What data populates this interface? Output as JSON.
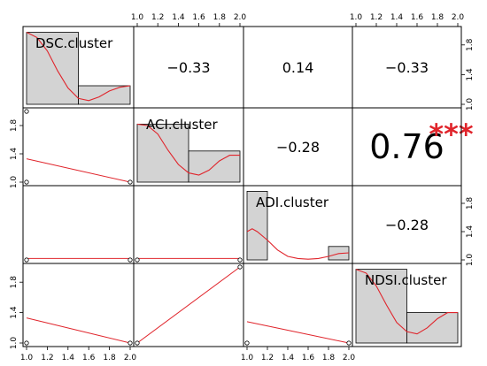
{
  "chart_data": {
    "type": "pairs-correlation-matrix",
    "variables": [
      "DSC.cluster",
      "ACI.cluster",
      "ADI.cluster",
      "NDSI.cluster"
    ],
    "axis_range": [
      1.0,
      2.0
    ],
    "top_ticks": [
      "1.0",
      "1.2",
      "1.4",
      "1.6",
      "1.8",
      "2.0"
    ],
    "bottom_ticks": [
      "1.0",
      "1.2",
      "1.4",
      "1.6",
      "1.8",
      "2.0"
    ],
    "side_ticks": [
      "1.0",
      "1.4",
      "1.8"
    ],
    "correlations": [
      {
        "row": 0,
        "col": 1,
        "text": "−0.33",
        "value": -0.33,
        "stars": ""
      },
      {
        "row": 0,
        "col": 2,
        "text": "0.14",
        "value": 0.14,
        "stars": ""
      },
      {
        "row": 0,
        "col": 3,
        "text": "−0.33",
        "value": -0.33,
        "stars": ""
      },
      {
        "row": 1,
        "col": 2,
        "text": "−0.28",
        "value": -0.28,
        "stars": ""
      },
      {
        "row": 1,
        "col": 3,
        "text": "0.76",
        "value": 0.76,
        "stars": "***"
      },
      {
        "row": 2,
        "col": 3,
        "text": "−0.28",
        "value": -0.28,
        "stars": ""
      }
    ],
    "histograms": [
      {
        "variable": "DSC.cluster",
        "bins": [
          {
            "from": 1.0,
            "to": 1.5,
            "height": 0.97
          },
          {
            "from": 1.5,
            "to": 2.0,
            "height": 0.25
          }
        ],
        "density": [
          [
            1.0,
            0.97
          ],
          [
            1.1,
            0.9
          ],
          [
            1.2,
            0.72
          ],
          [
            1.3,
            0.45
          ],
          [
            1.4,
            0.22
          ],
          [
            1.5,
            0.08
          ],
          [
            1.6,
            0.05
          ],
          [
            1.7,
            0.1
          ],
          [
            1.8,
            0.18
          ],
          [
            1.9,
            0.23
          ],
          [
            2.0,
            0.25
          ]
        ]
      },
      {
        "variable": "ACI.cluster",
        "bins": [
          {
            "from": 1.0,
            "to": 1.5,
            "height": 0.82
          },
          {
            "from": 1.5,
            "to": 2.0,
            "height": 0.44
          }
        ],
        "density": [
          [
            1.0,
            0.82
          ],
          [
            1.1,
            0.8
          ],
          [
            1.2,
            0.68
          ],
          [
            1.3,
            0.45
          ],
          [
            1.4,
            0.25
          ],
          [
            1.5,
            0.13
          ],
          [
            1.6,
            0.1
          ],
          [
            1.7,
            0.17
          ],
          [
            1.8,
            0.3
          ],
          [
            1.9,
            0.38
          ],
          [
            2.0,
            0.38
          ]
        ]
      },
      {
        "variable": "ADI.cluster",
        "bins": [
          {
            "from": 1.0,
            "to": 1.2,
            "height": 0.97
          },
          {
            "from": 1.2,
            "to": 1.8,
            "height": 0.0
          },
          {
            "from": 1.8,
            "to": 2.0,
            "height": 0.19
          }
        ],
        "density": [
          [
            1.0,
            0.4
          ],
          [
            1.05,
            0.44
          ],
          [
            1.1,
            0.4
          ],
          [
            1.2,
            0.28
          ],
          [
            1.3,
            0.14
          ],
          [
            1.4,
            0.05
          ],
          [
            1.5,
            0.02
          ],
          [
            1.6,
            0.01
          ],
          [
            1.7,
            0.02
          ],
          [
            1.8,
            0.05
          ],
          [
            1.9,
            0.09
          ],
          [
            2.0,
            0.1
          ]
        ]
      },
      {
        "variable": "NDSI.cluster",
        "bins": [
          {
            "from": 1.0,
            "to": 1.5,
            "height": 0.97
          },
          {
            "from": 1.5,
            "to": 2.0,
            "height": 0.4
          }
        ],
        "density": [
          [
            1.0,
            0.97
          ],
          [
            1.1,
            0.92
          ],
          [
            1.2,
            0.75
          ],
          [
            1.3,
            0.5
          ],
          [
            1.4,
            0.27
          ],
          [
            1.5,
            0.15
          ],
          [
            1.6,
            0.12
          ],
          [
            1.7,
            0.2
          ],
          [
            1.8,
            0.32
          ],
          [
            1.9,
            0.4
          ],
          [
            2.0,
            0.4
          ]
        ]
      }
    ],
    "scatter_panels": [
      {
        "row": 1,
        "col": 0,
        "points": [
          [
            1,
            1
          ],
          [
            1,
            2
          ],
          [
            2,
            1
          ]
        ],
        "fit": [
          [
            1,
            1.33
          ],
          [
            2,
            1.0
          ]
        ]
      },
      {
        "row": 2,
        "col": 0,
        "points": [
          [
            1,
            1
          ],
          [
            2,
            1
          ]
        ],
        "fit": [
          [
            1,
            1.02
          ],
          [
            2,
            1.02
          ]
        ]
      },
      {
        "row": 2,
        "col": 1,
        "points": [
          [
            1,
            1
          ],
          [
            2,
            1
          ]
        ],
        "fit": [
          [
            1,
            1.02
          ],
          [
            2,
            1.02
          ]
        ]
      },
      {
        "row": 3,
        "col": 0,
        "points": [
          [
            1,
            1
          ],
          [
            2,
            1
          ]
        ],
        "fit": [
          [
            1,
            1.33
          ],
          [
            2,
            1.0
          ]
        ]
      },
      {
        "row": 3,
        "col": 1,
        "points": [
          [
            1,
            1
          ],
          [
            2,
            2
          ]
        ],
        "fit": [
          [
            1,
            1.0
          ],
          [
            2,
            2.0
          ]
        ]
      },
      {
        "row": 3,
        "col": 2,
        "points": [
          [
            1,
            1
          ],
          [
            2,
            1
          ]
        ],
        "fit": [
          [
            1,
            1.28
          ],
          [
            2,
            1.0
          ]
        ]
      }
    ],
    "colors": {
      "fit_line": "#e0242b",
      "stars": "#e0242b",
      "bar_fill": "#d3d3d3",
      "border": "#000000"
    }
  }
}
